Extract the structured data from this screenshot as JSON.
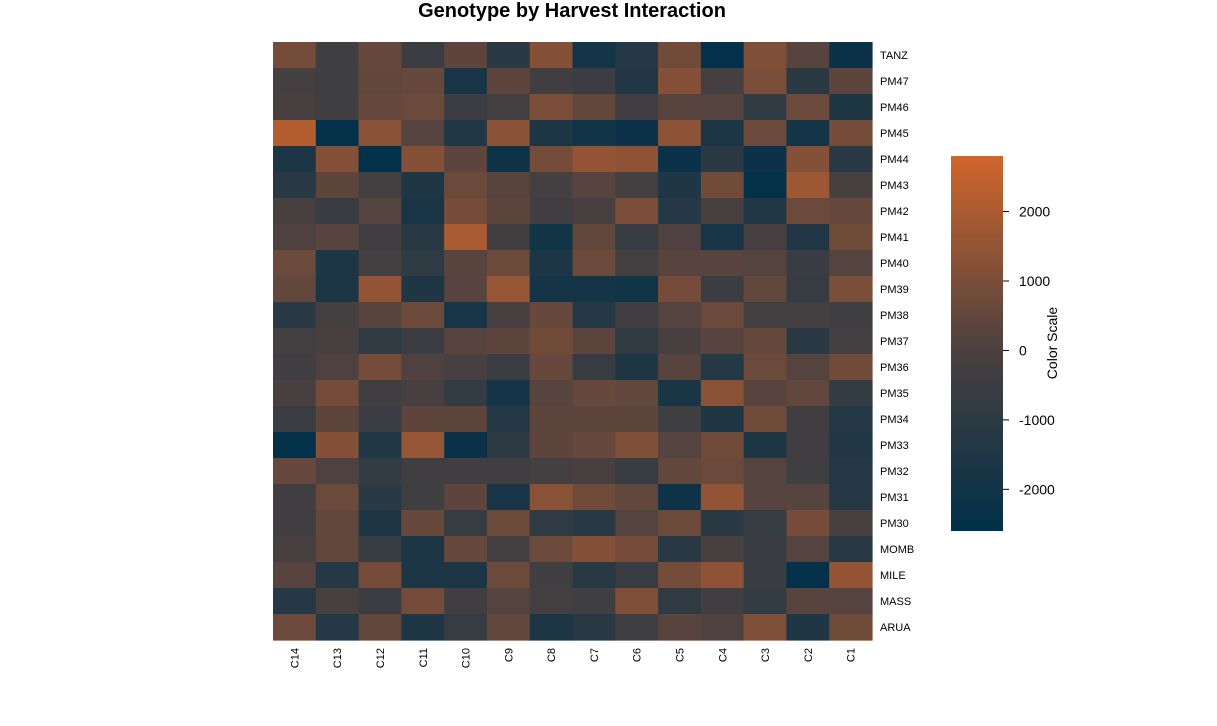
{
  "chart_data": {
    "type": "heatmap",
    "title": "Genotype by Harvest Interaction",
    "columns": [
      "C14",
      "C13",
      "C12",
      "C11",
      "C10",
      "C9",
      "C8",
      "C7",
      "C6",
      "C5",
      "C4",
      "C3",
      "C2",
      "C1"
    ],
    "rows": [
      "TANZ",
      "PM47",
      "PM46",
      "PM45",
      "PM44",
      "PM43",
      "PM42",
      "PM41",
      "PM40",
      "PM39",
      "PM38",
      "PM37",
      "PM36",
      "PM35",
      "PM34",
      "PM33",
      "PM32",
      "PM31",
      "PM30",
      "MOMB",
      "MILE",
      "MASS",
      "ARUA"
    ],
    "values": [
      [
        900,
        -400,
        600,
        -500,
        400,
        -1100,
        1200,
        -1900,
        -1300,
        800,
        -2500,
        1100,
        300,
        -2200
      ],
      [
        -200,
        -400,
        500,
        600,
        -1800,
        400,
        -300,
        -500,
        -1400,
        1200,
        -200,
        1000,
        -1100,
        400
      ],
      [
        -100,
        -400,
        600,
        700,
        -500,
        -200,
        1000,
        500,
        -300,
        300,
        200,
        -900,
        700,
        -1500
      ],
      [
        2200,
        -2500,
        1300,
        200,
        -1400,
        1300,
        -1600,
        -2000,
        -2200,
        1400,
        -1600,
        700,
        -1900,
        900
      ],
      [
        -1600,
        1200,
        -2500,
        1200,
        400,
        -2100,
        900,
        1500,
        1400,
        -2200,
        -1100,
        -2200,
        1200,
        -1200
      ],
      [
        -1200,
        400,
        -200,
        -1500,
        700,
        300,
        -200,
        300,
        -200,
        -1500,
        800,
        -2500,
        1700,
        -100
      ],
      [
        -100,
        -600,
        200,
        -1700,
        900,
        400,
        -300,
        -100,
        1000,
        -1300,
        -100,
        -1400,
        700,
        600
      ],
      [
        100,
        300,
        -300,
        -1200,
        2000,
        -300,
        -2000,
        500,
        -700,
        100,
        -1800,
        -100,
        -1400,
        800
      ],
      [
        700,
        -1600,
        -200,
        -900,
        300,
        700,
        -1600,
        700,
        -200,
        300,
        300,
        200,
        -600,
        200
      ],
      [
        500,
        -1600,
        1500,
        -1500,
        300,
        1600,
        -1900,
        -1900,
        -2000,
        900,
        -500,
        500,
        -700,
        1000
      ],
      [
        -1100,
        -200,
        300,
        700,
        -1800,
        -100,
        600,
        -1300,
        -300,
        200,
        700,
        -200,
        -200,
        -400
      ],
      [
        -200,
        -100,
        -900,
        -500,
        300,
        400,
        800,
        400,
        -900,
        -100,
        300,
        600,
        -1100,
        -200
      ],
      [
        -300,
        100,
        900,
        100,
        -100,
        -500,
        600,
        -700,
        -1500,
        300,
        -1300,
        700,
        200,
        800
      ],
      [
        -100,
        900,
        -300,
        -100,
        -800,
        -1900,
        300,
        600,
        500,
        -1700,
        1300,
        300,
        500,
        -800
      ],
      [
        -500,
        400,
        -500,
        400,
        400,
        -1300,
        400,
        400,
        400,
        -400,
        -1500,
        800,
        -300,
        -1300
      ],
      [
        -2500,
        1200,
        -1400,
        1600,
        -2200,
        -1000,
        400,
        600,
        1100,
        200,
        800,
        -1600,
        -300,
        -1400
      ],
      [
        600,
        100,
        -800,
        -300,
        -300,
        -300,
        -200,
        -100,
        -700,
        500,
        700,
        200,
        -400,
        -1300
      ],
      [
        -300,
        700,
        -1100,
        -400,
        400,
        -1800,
        1300,
        800,
        500,
        -2100,
        1500,
        200,
        300,
        -1300
      ],
      [
        -300,
        500,
        -1500,
        600,
        -700,
        700,
        -900,
        -1200,
        200,
        700,
        -1100,
        -700,
        900,
        -100
      ],
      [
        -100,
        500,
        -700,
        -1600,
        600,
        -200,
        700,
        1200,
        900,
        -1200,
        -100,
        -600,
        200,
        -1200
      ],
      [
        300,
        -1300,
        900,
        -1600,
        -1600,
        700,
        -400,
        -1200,
        -700,
        900,
        1400,
        -600,
        -2500,
        1500
      ],
      [
        -1300,
        -100,
        -500,
        900,
        -300,
        200,
        -200,
        -400,
        1100,
        -900,
        -300,
        -800,
        300,
        200
      ],
      [
        700,
        -1300,
        500,
        -1500,
        -700,
        500,
        -1600,
        -1100,
        -400,
        300,
        100,
        1100,
        -1500,
        800
      ]
    ],
    "colorbar": {
      "label": "Color Scale",
      "ticks": [
        -2000,
        -1000,
        0,
        1000,
        2000
      ],
      "range": [
        -2600,
        2800
      ],
      "low_color": "#003049",
      "mid_color": "#4a4040",
      "high_color": "#d1662c"
    }
  }
}
